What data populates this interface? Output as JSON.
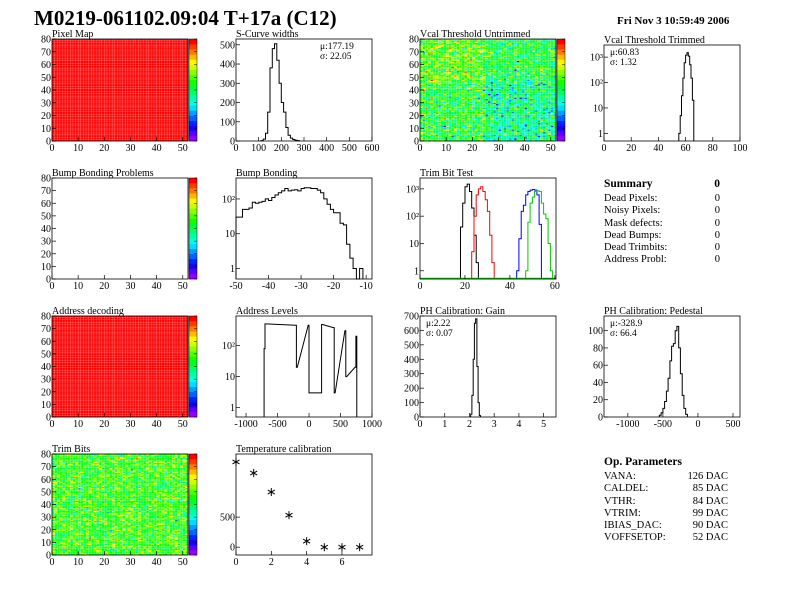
{
  "header": {
    "title": "M0219-061102.09:04 T+17a (C12)",
    "date": "Fri Nov  3 10:59:49 2006"
  },
  "summary": {
    "title": "Summary",
    "total": "0",
    "items": [
      {
        "label": "Dead Pixels:",
        "value": "0"
      },
      {
        "label": "Noisy Pixels:",
        "value": "0"
      },
      {
        "label": "Mask defects:",
        "value": "0"
      },
      {
        "label": "Dead Bumps:",
        "value": "0"
      },
      {
        "label": "Dead Trimbits:",
        "value": "0"
      },
      {
        "label": "Address Probl:",
        "value": "0"
      }
    ]
  },
  "op_parameters": {
    "title": "Op. Parameters",
    "items": [
      {
        "label": "VANA:",
        "value": "126 DAC"
      },
      {
        "label": "CALDEL:",
        "value": "85 DAC"
      },
      {
        "label": "VTHR:",
        "value": "84 DAC"
      },
      {
        "label": "VTRIM:",
        "value": "99 DAC"
      },
      {
        "label": "IBIAS_DAC:",
        "value": "90 DAC"
      },
      {
        "label": "VOFFSETOP:",
        "value": "52 DAC"
      }
    ]
  },
  "chart_data": [
    {
      "id": "pixel_map",
      "type": "heatmap",
      "title": "Pixel Map",
      "xlim": [
        0,
        52
      ],
      "ylim": [
        0,
        80
      ],
      "zlim": [
        0,
        10
      ],
      "typical_value": 10,
      "spread": 0,
      "xticks": [
        0,
        10,
        20,
        30,
        40,
        50
      ],
      "yticks": [
        0,
        10,
        20,
        30,
        40,
        50,
        60,
        70,
        80
      ]
    },
    {
      "id": "s_curve",
      "type": "hist",
      "title": "S-Curve widths",
      "xlim": [
        0,
        600
      ],
      "ylim": [
        0,
        530
      ],
      "log": false,
      "bin_width": 10,
      "stats": [
        "μ:177.19",
        "σ: 22.05"
      ],
      "xticks": [
        0,
        100,
        200,
        300,
        400,
        500,
        600
      ],
      "yticks": [
        0,
        100,
        200,
        300,
        400,
        500
      ],
      "bins": [
        [
          110,
          2
        ],
        [
          120,
          10
        ],
        [
          130,
          40
        ],
        [
          140,
          150
        ],
        [
          150,
          380
        ],
        [
          160,
          480
        ],
        [
          170,
          505
        ],
        [
          180,
          420
        ],
        [
          190,
          300
        ],
        [
          200,
          200
        ],
        [
          210,
          150
        ],
        [
          220,
          70
        ],
        [
          230,
          30
        ],
        [
          240,
          15
        ],
        [
          250,
          8
        ],
        [
          260,
          4
        ],
        [
          270,
          2
        ]
      ]
    },
    {
      "id": "vcal_untrimmed",
      "type": "heatmap",
      "title": "Vcal Threshold Untrimmed",
      "xlim": [
        0,
        52
      ],
      "ylim": [
        0,
        80
      ],
      "zlim": [
        86,
        128
      ],
      "typical_value": 108,
      "spread": 5,
      "xticks": [
        0,
        10,
        20,
        30,
        40,
        50
      ],
      "yticks": [
        0,
        10,
        20,
        30,
        40,
        50,
        60,
        70,
        80
      ]
    },
    {
      "id": "vcal_trimmed",
      "type": "hist",
      "title": "Vcal Threshold Trimmed",
      "xlim": [
        0,
        100
      ],
      "ylim": [
        0.5,
        3000
      ],
      "log": true,
      "bin_width": 1,
      "stats": [
        "μ:60.83",
        "σ: 1.32"
      ],
      "xticks": [
        0,
        20,
        40,
        60,
        80,
        100
      ],
      "yticks": [
        1,
        10,
        100,
        1000
      ],
      "ytick_labels": [
        "1",
        "10",
        "10²",
        "10³"
      ],
      "bins": [
        [
          55,
          1
        ],
        [
          56,
          5
        ],
        [
          57,
          30
        ],
        [
          58,
          150
        ],
        [
          59,
          600
        ],
        [
          60,
          1200
        ],
        [
          61,
          1500
        ],
        [
          62,
          1100
        ],
        [
          63,
          500
        ],
        [
          64,
          150
        ],
        [
          65,
          20
        ]
      ]
    },
    {
      "id": "bump_problems",
      "type": "heatmap",
      "title": "Bump Bonding Problems",
      "xlim": [
        0,
        52
      ],
      "ylim": [
        0,
        80
      ],
      "zlim": [
        0,
        1
      ],
      "typical_value": null,
      "spread": 0,
      "xticks": [
        0,
        10,
        20,
        30,
        40,
        50
      ],
      "yticks": [
        0,
        10,
        20,
        30,
        40,
        50,
        60,
        70,
        80
      ]
    },
    {
      "id": "bump_bonding",
      "type": "hist",
      "title": "Bump Bonding",
      "xlim": [
        -50,
        -8.2
      ],
      "ylim": [
        0.5,
        400
      ],
      "log": true,
      "bin_width": 1,
      "xticks": [
        -50,
        -40,
        -30,
        -20,
        -10
      ],
      "yticks": [
        1,
        10,
        100
      ],
      "ytick_labels": [
        "1",
        "10",
        "10²"
      ],
      "bins": [
        [
          -50,
          30
        ],
        [
          -49,
          30
        ],
        [
          -48,
          50
        ],
        [
          -47,
          50
        ],
        [
          -46,
          55
        ],
        [
          -45,
          80
        ],
        [
          -44,
          75
        ],
        [
          -43,
          80
        ],
        [
          -42,
          85
        ],
        [
          -41,
          100
        ],
        [
          -40,
          90
        ],
        [
          -39,
          110
        ],
        [
          -38,
          130
        ],
        [
          -37,
          150
        ],
        [
          -36,
          170
        ],
        [
          -35,
          200
        ],
        [
          -34,
          170
        ],
        [
          -33,
          180
        ],
        [
          -32,
          185
        ],
        [
          -31,
          170
        ],
        [
          -30,
          200
        ],
        [
          -29,
          210
        ],
        [
          -28,
          210
        ],
        [
          -27,
          200
        ],
        [
          -26,
          200
        ],
        [
          -25,
          180
        ],
        [
          -24,
          150
        ],
        [
          -23,
          100
        ],
        [
          -22,
          70
        ],
        [
          -21,
          50
        ],
        [
          -20,
          40
        ],
        [
          -19,
          40
        ],
        [
          -18,
          20
        ],
        [
          -17,
          18
        ],
        [
          -16,
          5
        ],
        [
          -15,
          2
        ],
        [
          -14,
          1
        ],
        [
          -13,
          0.4
        ],
        [
          -12,
          1
        ]
      ]
    },
    {
      "id": "trim_bit_test",
      "type": "multi_hist",
      "title": "Trim Bit Test",
      "xlim": [
        0,
        60.5
      ],
      "ylim": [
        0.5,
        2500
      ],
      "log": true,
      "bin_width": 1,
      "xticks": [
        0,
        20,
        40,
        60
      ],
      "yticks": [
        1,
        10,
        100,
        1000
      ],
      "ytick_labels": [
        "1",
        "10",
        "10²",
        "10³"
      ],
      "series": [
        {
          "color": "#000000",
          "bins": [
            [
              18,
              40
            ],
            [
              19,
              300
            ],
            [
              20,
              1200
            ],
            [
              21,
              1500
            ],
            [
              22,
              800
            ],
            [
              23,
              200
            ],
            [
              24,
              20
            ],
            [
              25,
              2
            ]
          ]
        },
        {
          "color": "#ff0000",
          "bins": [
            [
              23,
              5
            ],
            [
              24,
              100
            ],
            [
              25,
              600
            ],
            [
              26,
              1000
            ],
            [
              27,
              1200
            ],
            [
              28,
              800
            ],
            [
              29,
              400
            ],
            [
              30,
              150
            ],
            [
              31,
              20
            ],
            [
              32,
              2
            ]
          ]
        },
        {
          "color": "#0000ff",
          "bins": [
            [
              43,
              1
            ],
            [
              44,
              15
            ],
            [
              45,
              150
            ],
            [
              46,
              250
            ],
            [
              47,
              600
            ],
            [
              48,
              800
            ],
            [
              49,
              900
            ],
            [
              50,
              950
            ],
            [
              51,
              900
            ],
            [
              52,
              600
            ],
            [
              53,
              50
            ]
          ]
        },
        {
          "color": "#00cc00",
          "bins": [
            [
              47,
              1
            ],
            [
              48,
              60
            ],
            [
              49,
              300
            ],
            [
              50,
              500
            ],
            [
              51,
              800
            ],
            [
              52,
              850
            ],
            [
              53,
              800
            ],
            [
              54,
              300
            ],
            [
              55,
              120
            ],
            [
              56,
              80
            ],
            [
              57,
              10
            ],
            [
              58,
              1
            ]
          ]
        }
      ]
    },
    {
      "id": "address_decoding",
      "type": "heatmap",
      "title": "Address decoding",
      "xlim": [
        0,
        52
      ],
      "ylim": [
        0,
        80
      ],
      "zlim": [
        0,
        1
      ],
      "typical_value": 1,
      "spread": 0,
      "xticks": [
        0,
        10,
        20,
        30,
        40,
        50
      ],
      "yticks": [
        0,
        10,
        20,
        30,
        40,
        50,
        60,
        70,
        80
      ]
    },
    {
      "id": "address_levels",
      "type": "hist",
      "title": "Address Levels",
      "xlim": [
        -1160,
        1000
      ],
      "ylim": [
        0.5,
        900
      ],
      "log": true,
      "bin_width": 14,
      "xticks": [
        -1000,
        -500,
        0,
        500,
        1000
      ],
      "yticks": [
        1,
        10,
        100
      ],
      "ytick_labels": [
        "1",
        "10",
        "10²"
      ],
      "bins": [
        [
          -714,
          80
        ],
        [
          -700,
          500
        ],
        [
          -214,
          450
        ],
        [
          -200,
          20
        ],
        [
          -14,
          450
        ],
        [
          0,
          3
        ],
        [
          186,
          3
        ],
        [
          200,
          480
        ],
        [
          386,
          380
        ],
        [
          400,
          3
        ],
        [
          570,
          300
        ],
        [
          584,
          10
        ],
        [
          730,
          20
        ],
        [
          744,
          200
        ]
      ]
    },
    {
      "id": "ph_gain",
      "type": "hist",
      "title": "PH Calibration: Gain",
      "xlim": [
        0,
        5.5
      ],
      "ylim": [
        0,
        700
      ],
      "log": false,
      "bin_width": 0.05,
      "stats": [
        "μ:2.22",
        "σ: 0.07"
      ],
      "xticks": [
        0,
        1,
        2,
        3,
        4,
        5
      ],
      "yticks": [
        0,
        100,
        200,
        300,
        400,
        500,
        600,
        700
      ],
      "bins": [
        [
          2.05,
          20
        ],
        [
          2.1,
          150
        ],
        [
          2.15,
          400
        ],
        [
          2.2,
          650
        ],
        [
          2.25,
          680
        ],
        [
          2.3,
          350
        ],
        [
          2.35,
          100
        ],
        [
          2.4,
          10
        ]
      ]
    },
    {
      "id": "ph_pedestal",
      "type": "hist",
      "title": "PH Calibration: Pedestal",
      "xlim": [
        -1340,
        600
      ],
      "ylim": [
        0,
        117
      ],
      "log": false,
      "bin_width": 25,
      "stats": [
        "μ:-328.9",
        "σ: 66.4"
      ],
      "xticks": [
        -1000,
        -500,
        0,
        500
      ],
      "yticks": [
        0,
        20,
        40,
        60,
        80,
        100
      ],
      "bins": [
        [
          -550,
          2
        ],
        [
          -525,
          5
        ],
        [
          -500,
          10
        ],
        [
          -475,
          18
        ],
        [
          -450,
          30
        ],
        [
          -425,
          45
        ],
        [
          -400,
          65
        ],
        [
          -375,
          82
        ],
        [
          -350,
          85
        ],
        [
          -325,
          100
        ],
        [
          -300,
          105
        ],
        [
          -275,
          80
        ],
        [
          -250,
          50
        ],
        [
          -225,
          25
        ],
        [
          -200,
          10
        ],
        [
          -175,
          3
        ]
      ]
    },
    {
      "id": "trim_bits",
      "type": "heatmap",
      "title": "Trim Bits",
      "xlim": [
        0,
        52
      ],
      "ylim": [
        0,
        80
      ],
      "zlim": [
        0,
        16
      ],
      "typical_value": 9.5,
      "spread": 1.6,
      "xticks": [
        0,
        10,
        20,
        30,
        40,
        50
      ],
      "yticks": [
        0,
        10,
        20,
        30,
        40,
        50,
        60,
        70,
        80
      ]
    },
    {
      "id": "temp_cal",
      "type": "scatter",
      "title": "Temperature calibration",
      "xlim": [
        0,
        7.7
      ],
      "ylim": [
        -130,
        1550
      ],
      "log": false,
      "xticks": [
        0,
        2,
        4,
        6
      ],
      "yticks": [
        0,
        500
      ],
      "points": [
        [
          0,
          1417
        ],
        [
          1,
          1233
        ],
        [
          2,
          917
        ],
        [
          3,
          533
        ],
        [
          4,
          100
        ],
        [
          5,
          0
        ],
        [
          6,
          0
        ],
        [
          7,
          0
        ]
      ]
    }
  ]
}
